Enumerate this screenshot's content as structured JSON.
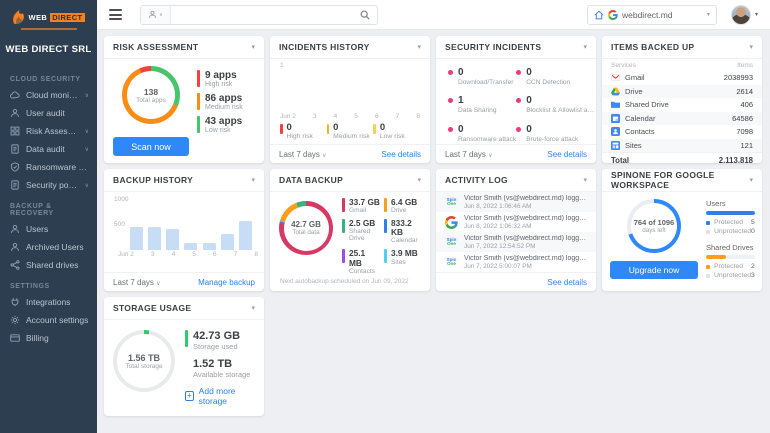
{
  "topbar": {
    "search_placeholder": "",
    "domain": "webdirect.md"
  },
  "sidebar": {
    "logo_web": "WEB",
    "logo_direct": "DIRECT",
    "org_name": "WEB DIRECT SRL",
    "sections": [
      {
        "title": "CLOUD SECURITY",
        "items": [
          {
            "label": "Cloud monitor",
            "chevron": true
          },
          {
            "label": "User audit",
            "chevron": false
          },
          {
            "label": "Risk Assessment",
            "chevron": true
          },
          {
            "label": "Data audit",
            "chevron": true
          },
          {
            "label": "Ransomware protection",
            "chevron": false
          },
          {
            "label": "Security policies",
            "chevron": true
          }
        ]
      },
      {
        "title": "BACKUP & RECOVERY",
        "items": [
          {
            "label": "Users",
            "chevron": false
          },
          {
            "label": "Archived Users",
            "chevron": false
          },
          {
            "label": "Shared drives",
            "chevron": false
          }
        ]
      },
      {
        "title": "SETTINGS",
        "items": [
          {
            "label": "Integrations",
            "chevron": false
          },
          {
            "label": "Account settings",
            "chevron": false
          },
          {
            "label": "Billing",
            "chevron": false
          }
        ]
      }
    ]
  },
  "cards": {
    "risk": {
      "title": "RISK ASSESSMENT",
      "center_value": "138",
      "center_label": "Total apps",
      "legend": [
        {
          "value": "9 apps",
          "label": "High risk",
          "color": "#f5413e"
        },
        {
          "value": "86 apps",
          "label": "Medium risk",
          "color": "#fa8c16"
        },
        {
          "value": "43 apps",
          "label": "Low risk",
          "color": "#49c46d"
        }
      ],
      "button": "Scan now",
      "donut": {
        "segments": [
          {
            "color": "#49c46d",
            "value": 43
          },
          {
            "color": "#fa8c16",
            "value": 86
          },
          {
            "color": "#f5413e",
            "value": 9
          }
        ]
      }
    },
    "incidents": {
      "title": "INCIDENTS HISTORY",
      "y_top": "1",
      "x_labels": [
        "Jun 2",
        "3",
        "4",
        "5",
        "6",
        "7",
        "8"
      ],
      "stats": [
        {
          "value": "0",
          "label": "High risk",
          "color": "#f5413e"
        },
        {
          "value": "0",
          "label": "Medium risk",
          "color": "#f0b429"
        },
        {
          "value": "0",
          "label": "Low risk",
          "color": "#f7d154"
        }
      ],
      "period": "Last 7 days",
      "link": "See details"
    },
    "security": {
      "title": "SECURITY INCIDENTS",
      "dot_color": "#eb3b7a",
      "items": [
        {
          "value": "0",
          "label": "Download/Transfer"
        },
        {
          "value": "0",
          "label": "CCN Detection"
        },
        {
          "value": "1",
          "label": "Data Sharing"
        },
        {
          "value": "0",
          "label": "Blocklist & Allowlist apps"
        },
        {
          "value": "0",
          "label": "Ransomware attack"
        },
        {
          "value": "0",
          "label": "Brute-force attack"
        }
      ],
      "period": "Last 7 days",
      "link": "See details"
    },
    "items": {
      "title": "ITEMS BACKED UP",
      "col_services": "Services",
      "col_items": "Items",
      "rows": [
        {
          "service": "Gmail",
          "items": "2038993"
        },
        {
          "service": "Drive",
          "items": "2614"
        },
        {
          "service": "Shared Drive",
          "items": "406"
        },
        {
          "service": "Calendar",
          "items": "64586"
        },
        {
          "service": "Contacts",
          "items": "7098"
        },
        {
          "service": "Sites",
          "items": "121"
        }
      ],
      "total_label": "Total",
      "total_value": "2,113,818"
    },
    "backup": {
      "title": "BACKUP HISTORY",
      "y_labels": [
        "1000",
        "500"
      ],
      "x_labels": [
        "Jun 2",
        "3",
        "4",
        "5",
        "6",
        "7",
        "8"
      ],
      "values": [
        470,
        455,
        415,
        140,
        150,
        330,
        590
      ],
      "max": 1000,
      "bar_color": "#c7ddf5",
      "period": "Last 7 days",
      "link": "Manage backup"
    },
    "data": {
      "title": "DATA BACKUP",
      "center_value": "42.7 GB",
      "center_label": "Total data",
      "legend": [
        {
          "value": "33.7 GB",
          "label": "Gmail",
          "color": "#d63964"
        },
        {
          "value": "6.4 GB",
          "label": "Drive",
          "color": "#fa9f1b"
        },
        {
          "value": "2.5 GB",
          "label": "Shared Drive",
          "color": "#36b37e"
        },
        {
          "value": "833.2 KB",
          "label": "Calendar",
          "color": "#2f80ed"
        },
        {
          "value": "25.1 MB",
          "label": "Contacts",
          "color": "#9b51e0"
        },
        {
          "value": "3.9 MB",
          "label": "Sites",
          "color": "#56ccf2"
        }
      ],
      "note": "Next autobackup scheduled on Jun 09, 2022",
      "donut": {
        "segments": [
          {
            "color": "#d63964",
            "value": 337
          },
          {
            "color": "#2f80ed",
            "value": 2
          },
          {
            "color": "#9b51e0",
            "value": 2
          },
          {
            "color": "#56ccf2",
            "value": 2
          },
          {
            "color": "#fa9f1b",
            "value": 64
          },
          {
            "color": "#36b37e",
            "value": 25
          }
        ]
      }
    },
    "activity": {
      "title": "ACTIVITY LOG",
      "entries": [
        {
          "icon": "spinone-icon",
          "text": "Victor Smith (vs@webdirect.md) logged in",
          "time": "Jun 8, 2022 1:06:46 AM"
        },
        {
          "icon": "google-icon",
          "text": "Victor Smith (vs@webdirect.md) logged in to Go...",
          "time": "Jun 8, 2022 1:06:32 AM"
        },
        {
          "icon": "spinone-icon",
          "text": "Victor Smith (vs@webdirect.md) logged in",
          "time": "Jun 7, 2022 12:54:52 PM"
        },
        {
          "icon": "spinone-icon",
          "text": "Victor Smith (vs@webdirect.md) logged in",
          "time": "Jun 7, 2022 5:00:07 PM"
        }
      ],
      "link": "See details"
    },
    "spinone": {
      "title": "SPINONE FOR GOOGLE WORKSPACE",
      "center_value": "764 of 1096",
      "center_label": "days left",
      "users_label": "Users",
      "users": {
        "protected_label": "Protected",
        "protected_value": "5",
        "unprotected_label": "Unprotected",
        "unprotected_value": "0",
        "bar_pct": 100,
        "color": "#2f80ed"
      },
      "drives_label": "Shared Drives",
      "drives": {
        "protected_label": "Protected",
        "protected_value": "2",
        "unprotected_label": "Unprotected",
        "unprotected_value": "3",
        "bar_pct": 40,
        "color": "#fa9f1b"
      },
      "button": "Upgrade now",
      "donut": {
        "segments": [
          {
            "color": "#2f88f7",
            "value": 764
          },
          {
            "color": "#e9edf2",
            "value": 332
          }
        ]
      }
    },
    "storage": {
      "title": "STORAGE USAGE",
      "center_value": "1.56 TB",
      "center_label": "Total storage",
      "used_value": "42.73 GB",
      "used_label": "Storage used",
      "used_color": "#2ecc71",
      "avail_value": "1.52 TB",
      "avail_label": "Available storage",
      "add_link": "Add more storage",
      "donut": {
        "segments": [
          {
            "color": "#2ecc71",
            "value": 43
          },
          {
            "color": "#e8eaee",
            "value": 1517
          }
        ]
      }
    }
  },
  "chart_data": [
    {
      "type": "pie",
      "title": "Risk Assessment",
      "center_label": "138 Total apps",
      "slices": [
        {
          "label": "High risk",
          "value": 9,
          "color": "#f5413e"
        },
        {
          "label": "Medium risk",
          "value": 86,
          "color": "#fa8c16"
        },
        {
          "label": "Low risk",
          "value": 43,
          "color": "#49c46d"
        }
      ]
    },
    {
      "type": "line",
      "title": "Incidents History",
      "x": [
        "Jun 2",
        "3",
        "4",
        "5",
        "6",
        "7",
        "8"
      ],
      "ylim": [
        0,
        1
      ],
      "series": [
        {
          "name": "High risk",
          "values": [
            0,
            0,
            0,
            0,
            0,
            0,
            0
          ]
        },
        {
          "name": "Medium risk",
          "values": [
            0,
            0,
            0,
            0,
            0,
            0,
            0
          ]
        },
        {
          "name": "Low risk",
          "values": [
            0,
            0,
            0,
            0,
            0,
            0,
            0
          ]
        }
      ]
    },
    {
      "type": "bar",
      "title": "Backup History",
      "categories": [
        "Jun 2",
        "3",
        "4",
        "5",
        "6",
        "7",
        "8"
      ],
      "values": [
        470,
        455,
        415,
        140,
        150,
        330,
        590
      ],
      "ylim": [
        0,
        1000
      ]
    },
    {
      "type": "pie",
      "title": "Data Backup",
      "center_label": "42.7 GB Total data",
      "slices": [
        {
          "label": "Gmail",
          "value": "33.7 GB"
        },
        {
          "label": "Drive",
          "value": "6.4 GB"
        },
        {
          "label": "Shared Drive",
          "value": "2.5 GB"
        },
        {
          "label": "Calendar",
          "value": "833.2 KB"
        },
        {
          "label": "Contacts",
          "value": "25.1 MB"
        },
        {
          "label": "Sites",
          "value": "3.9 MB"
        }
      ]
    },
    {
      "type": "pie",
      "title": "SpinOne subscription days",
      "slices": [
        {
          "label": "days left",
          "value": 764
        },
        {
          "label": "days used",
          "value": 332
        }
      ]
    },
    {
      "type": "pie",
      "title": "Storage Usage",
      "slices": [
        {
          "label": "Storage used (GB)",
          "value": 42.73
        },
        {
          "label": "Available (GB)",
          "value": 1517
        }
      ]
    }
  ]
}
